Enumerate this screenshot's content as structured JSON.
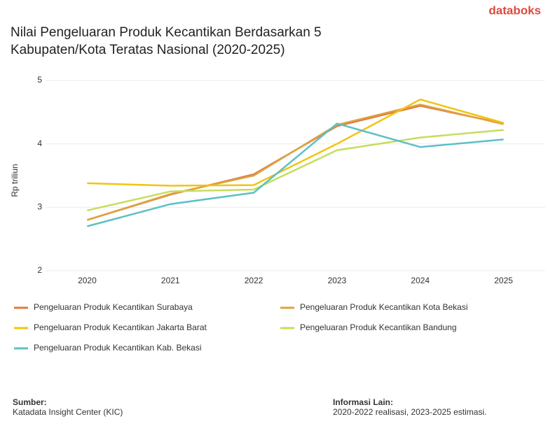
{
  "brand": "databoks",
  "chart_data": {
    "type": "line",
    "title": "Nilai Pengeluaran Produk Kecantikan Berdasarkan 5 Kabupaten/Kota Teratas Nasional (2020-2025)",
    "ylabel": "Rp triliun",
    "categories": [
      "2020",
      "2021",
      "2022",
      "2023",
      "2024",
      "2025"
    ],
    "series": [
      {
        "name": "Pengeluaran Produk Kecantikan Surabaya",
        "color": "#e0793a",
        "values": [
          2.8,
          3.2,
          3.52,
          4.28,
          4.6,
          4.32
        ]
      },
      {
        "name": "Pengeluaran Produk Kecantikan Kota Bekasi",
        "color": "#dea241",
        "values": [
          2.8,
          3.21,
          3.5,
          4.3,
          4.62,
          4.31
        ]
      },
      {
        "name": "Pengeluaran Produk Kecantikan Jakarta Barat",
        "color": "#f2c40f",
        "values": [
          3.38,
          3.34,
          3.35,
          4.0,
          4.7,
          4.33
        ]
      },
      {
        "name": "Pengeluaran Produk Kecantikan Bandung",
        "color": "#c6dd5c",
        "values": [
          2.95,
          3.25,
          3.28,
          3.9,
          4.1,
          4.22
        ]
      },
      {
        "name": "Pengeluaran Produk Kecantikan Kab. Bekasi",
        "color": "#5dbfc7",
        "values": [
          2.7,
          3.05,
          3.23,
          4.32,
          3.95,
          4.07
        ]
      }
    ],
    "ylim": [
      2,
      5
    ],
    "yticks": [
      2,
      3,
      4,
      5
    ],
    "grid": true
  },
  "footer": {
    "source_label": "Sumber:",
    "source": "Katadata Insight Center (KIC)",
    "info_label": "Informasi Lain:",
    "info": "2020-2022 realisasi, 2023-2025 estimasi."
  }
}
